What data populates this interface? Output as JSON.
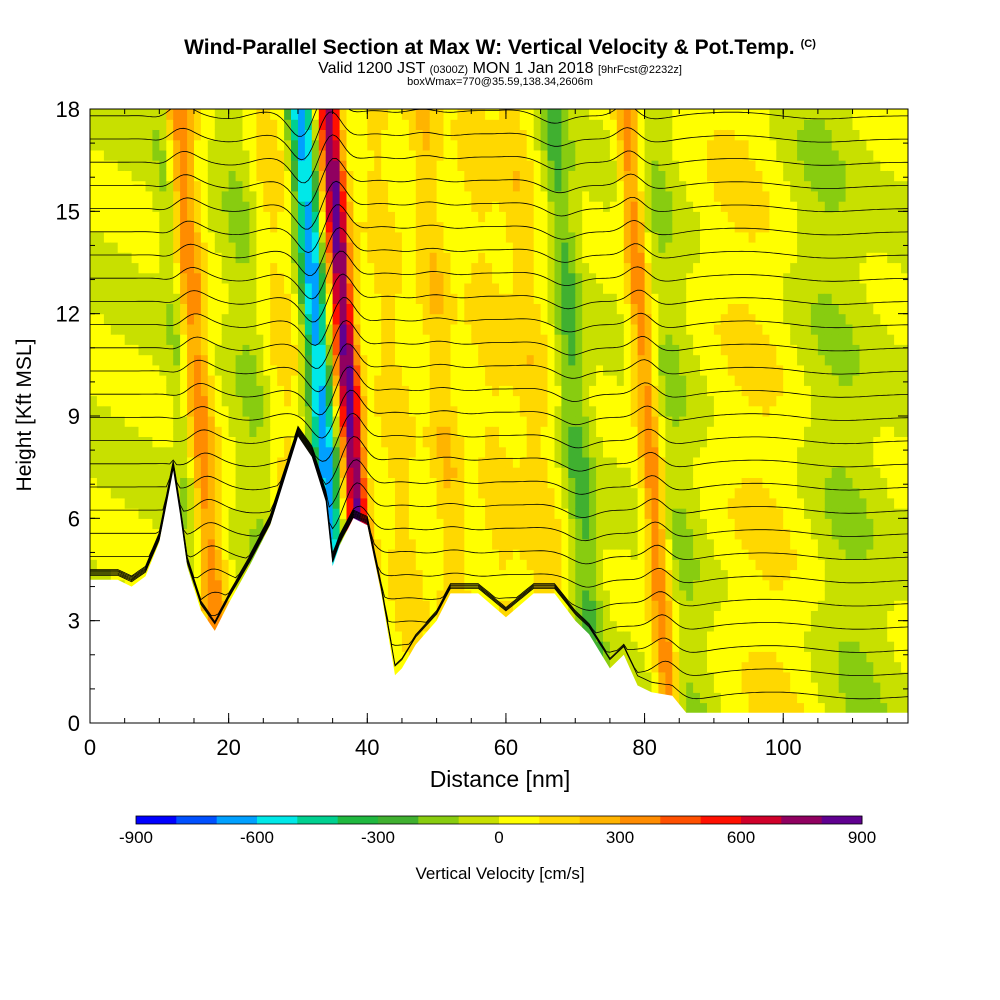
{
  "header": {
    "title": "Wind-Parallel Section at Max W: Vertical Velocity & Pot.Temp.",
    "copyright": "(C)",
    "valid_pre": "Valid 1200 JST",
    "valid_utc": "(0300Z)",
    "valid_date": "MON 1 Jan 2018",
    "fcst": "[9hrFcst@2232z]",
    "box": "boxWmax=770@35.59,138.34,2606m"
  },
  "chart_data": {
    "type": "heatmap",
    "xlabel": "Distance [nm]",
    "ylabel": "Height [Kft MSL]",
    "xlim": [
      0,
      118
    ],
    "ylim": [
      0,
      18
    ],
    "x_ticks": [
      0,
      20,
      40,
      60,
      80,
      100
    ],
    "y_ticks": [
      0,
      3,
      6,
      9,
      12,
      15,
      18
    ],
    "grid": false,
    "colorbar": {
      "label": "Vertical Velocity [cm/s]",
      "range": [
        -900,
        900
      ],
      "tick_labels": [
        -900,
        -600,
        -300,
        0,
        300,
        600,
        900
      ],
      "colors": [
        "#0000ff",
        "#0050ff",
        "#00a0ff",
        "#00e8e8",
        "#00d090",
        "#20b840",
        "#40b030",
        "#88cc10",
        "#c8e000",
        "#ffff00",
        "#ffd800",
        "#ffb400",
        "#ff8c00",
        "#ff5000",
        "#ff1000",
        "#d0002a",
        "#900060",
        "#600090"
      ]
    },
    "terrain_kft": [
      [
        0,
        4.2
      ],
      [
        4,
        4.2
      ],
      [
        6,
        4.0
      ],
      [
        8,
        4.3
      ],
      [
        10,
        5.3
      ],
      [
        12,
        7.4
      ],
      [
        13,
        6.1
      ],
      [
        14,
        4.6
      ],
      [
        16,
        3.3
      ],
      [
        18,
        2.7
      ],
      [
        20,
        3.5
      ],
      [
        23,
        4.6
      ],
      [
        26,
        5.8
      ],
      [
        30,
        8.4
      ],
      [
        32,
        7.8
      ],
      [
        34,
        6.5
      ],
      [
        35,
        4.6
      ],
      [
        36,
        5.2
      ],
      [
        38,
        6.0
      ],
      [
        40,
        5.8
      ],
      [
        42,
        3.8
      ],
      [
        44,
        1.4
      ],
      [
        45,
        1.6
      ],
      [
        47,
        2.3
      ],
      [
        50,
        3.0
      ],
      [
        52,
        3.8
      ],
      [
        56,
        3.8
      ],
      [
        60,
        3.1
      ],
      [
        64,
        3.8
      ],
      [
        67,
        3.8
      ],
      [
        70,
        3.0
      ],
      [
        72,
        2.6
      ],
      [
        75,
        1.6
      ],
      [
        77,
        2.0
      ],
      [
        79,
        1.1
      ],
      [
        81,
        0.9
      ],
      [
        84,
        0.8
      ],
      [
        86,
        0.3
      ],
      [
        118,
        0.3
      ]
    ],
    "w_features": [
      {
        "x": 15.5,
        "value": 380,
        "w": 2.4
      },
      {
        "x": 13.5,
        "value": -230,
        "w": 1.6
      },
      {
        "x": 24,
        "value": -120,
        "w": 3.0
      },
      {
        "x": 28,
        "value": 150,
        "w": 3.0
      },
      {
        "x": 33.5,
        "value": -660,
        "w": 1.8
      },
      {
        "x": 37.5,
        "value": 830,
        "w": 1.7
      },
      {
        "x": 44,
        "value": 150,
        "w": 2.6
      },
      {
        "x": 51,
        "value": 190,
        "w": 2.4
      },
      {
        "x": 58,
        "value": 130,
        "w": 2.8
      },
      {
        "x": 64,
        "value": 160,
        "w": 3.0
      },
      {
        "x": 70,
        "value": -230,
        "w": 2.0
      },
      {
        "x": 80.5,
        "value": 380,
        "w": 1.6
      },
      {
        "x": 84,
        "value": -110,
        "w": 3.0
      },
      {
        "x": 96,
        "value": 110,
        "w": 6.0
      },
      {
        "x": 108,
        "value": -100,
        "w": 5.0
      }
    ],
    "isentropes": {
      "type": "line",
      "count": 26,
      "label_format": "K"
    }
  }
}
